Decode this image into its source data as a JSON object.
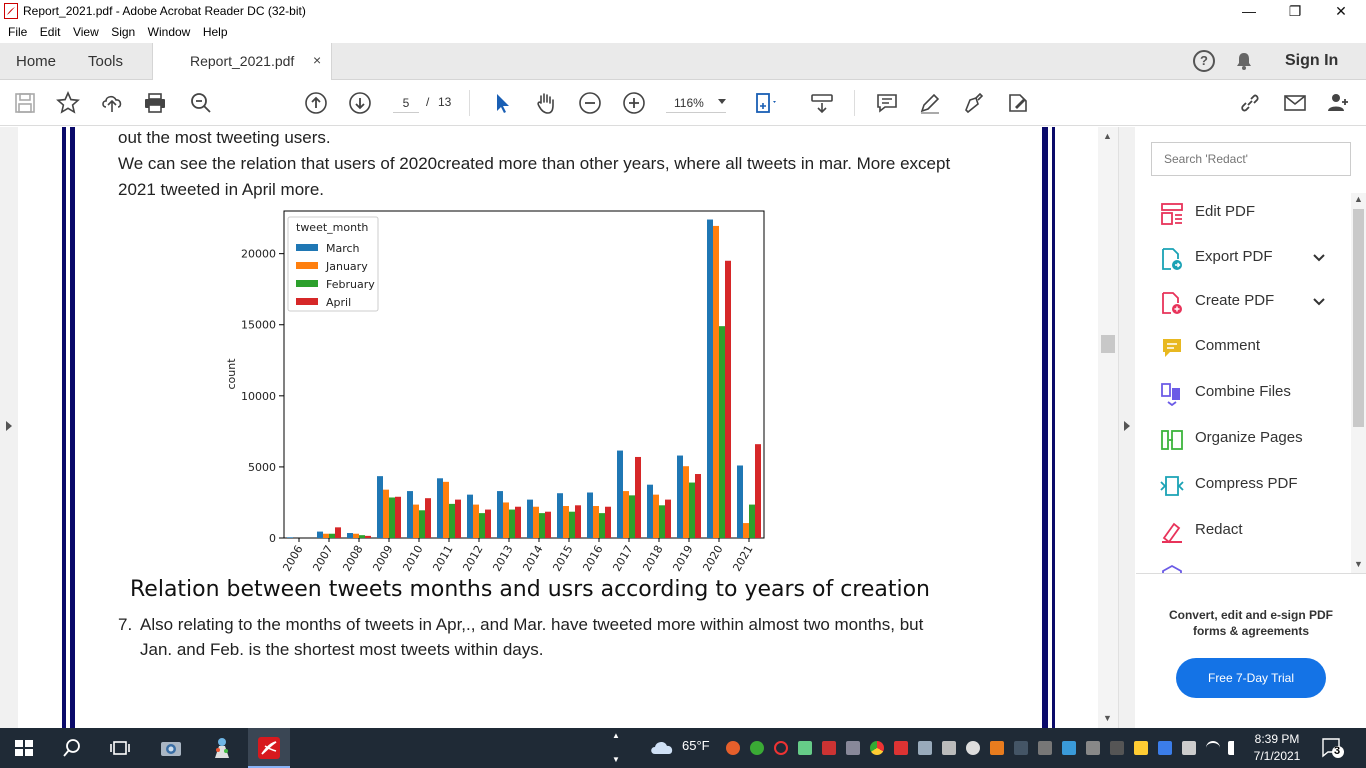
{
  "window": {
    "title": "Report_2021.pdf - Adobe Acrobat Reader DC (32-bit)",
    "minimize": "—",
    "restore": "❐",
    "close": "✕"
  },
  "menu": [
    "File",
    "Edit",
    "View",
    "Sign",
    "Window",
    "Help"
  ],
  "tabs": {
    "home": "Home",
    "tools": "Tools",
    "document": "Report_2021.pdf",
    "close": "×",
    "sign_in": "Sign In",
    "help": "?"
  },
  "toolbar": {
    "page_current": "5",
    "page_sep": "/",
    "page_total": "13",
    "zoom": "116%"
  },
  "document": {
    "line1": "out the most tweeting users.",
    "line2": "We can see the relation that users of 2020created more than other years, where all tweets in mar. More except",
    "line3": "2021 tweeted in April more.",
    "caption": "Relation between tweets months and usrs according to years of creation",
    "item_number": "7.",
    "item_line1": "Also relating to the months of tweets in Apr,., and Mar. have tweeted more within almost two months, but",
    "item_line2": "Jan. and Feb. is the shortest most tweets within days."
  },
  "chart_data": {
    "type": "bar",
    "categories": [
      "2006",
      "2007",
      "2008",
      "2009",
      "2010",
      "2011",
      "2012",
      "2013",
      "2014",
      "2015",
      "2016",
      "2017",
      "2018",
      "2019",
      "2020",
      "2021"
    ],
    "series": [
      {
        "name": "March",
        "color": "#1f77b4",
        "values": [
          50,
          450,
          350,
          4350,
          3300,
          4200,
          3050,
          3300,
          2700,
          3150,
          3200,
          6150,
          3750,
          5800,
          22400,
          5100
        ]
      },
      {
        "name": "January",
        "color": "#ff7f0e",
        "values": [
          0,
          300,
          300,
          3400,
          2350,
          3950,
          2350,
          2500,
          2200,
          2250,
          2250,
          3300,
          3050,
          5050,
          21950,
          1050
        ]
      },
      {
        "name": "February",
        "color": "#2ca02c",
        "values": [
          0,
          300,
          200,
          2850,
          1950,
          2400,
          1750,
          2000,
          1750,
          1850,
          1750,
          3000,
          2300,
          3900,
          14900,
          2350
        ]
      },
      {
        "name": "April",
        "color": "#d62728",
        "values": [
          0,
          750,
          150,
          2900,
          2800,
          2700,
          2000,
          2200,
          1850,
          2300,
          2200,
          5700,
          2700,
          4500,
          19500,
          6600
        ]
      }
    ],
    "ylabel": "count",
    "legend_title": "tweet_month",
    "legend_position": "top-left",
    "yticks": [
      0,
      5000,
      10000,
      15000,
      20000
    ],
    "ylim": [
      0,
      23000
    ]
  },
  "right_pane": {
    "search_placeholder": "Search 'Redact'",
    "tools": [
      {
        "label": "Edit PDF",
        "icon": "edit-pdf-icon",
        "color": "#e8335a"
      },
      {
        "label": "Export PDF",
        "icon": "export-pdf-icon",
        "color": "#1aa2b5"
      },
      {
        "label": "Create PDF",
        "icon": "create-pdf-icon",
        "color": "#e8335a"
      },
      {
        "label": "Comment",
        "icon": "comment-icon",
        "color": "#e8b820"
      },
      {
        "label": "Combine Files",
        "icon": "combine-files-icon",
        "color": "#6b5be6"
      },
      {
        "label": "Organize Pages",
        "icon": "organize-pages-icon",
        "color": "#3cb43c"
      },
      {
        "label": "Compress PDF",
        "icon": "compress-pdf-icon",
        "color": "#1aa2b5"
      },
      {
        "label": "Redact",
        "icon": "redact-icon",
        "color": "#e8335a"
      }
    ],
    "promo": "Convert, edit and e-sign PDF forms & agreements",
    "trial_button": "Free 7-Day Trial"
  },
  "taskbar": {
    "weather": "65°F",
    "time": "8:39 PM",
    "date": "7/1/2021",
    "notifications": "3"
  }
}
